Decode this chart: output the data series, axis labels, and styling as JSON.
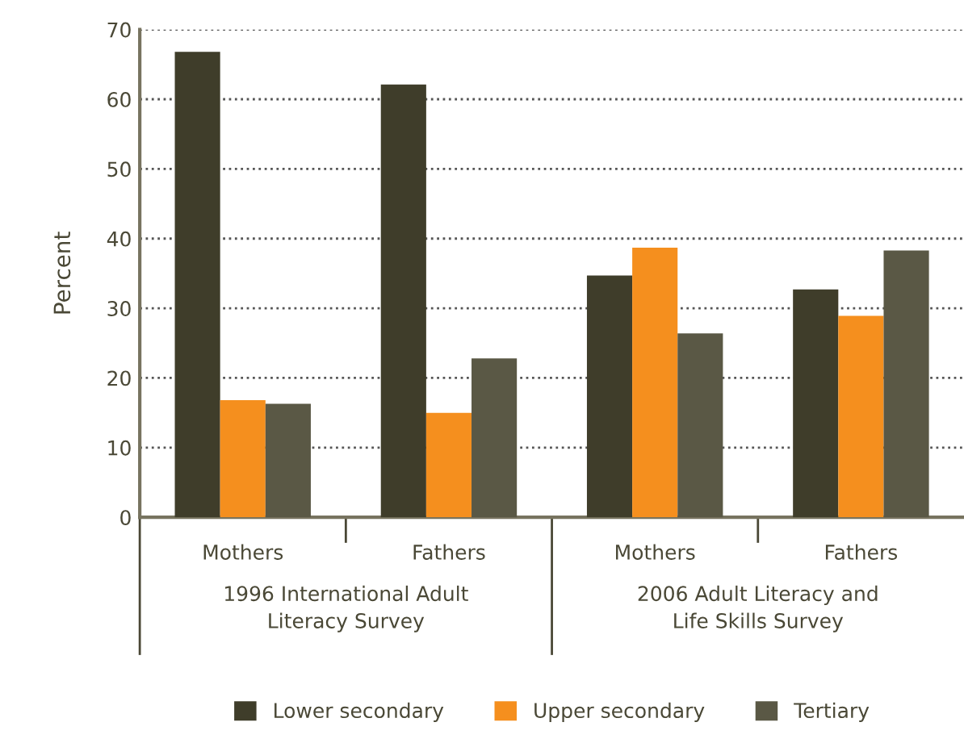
{
  "chart_data": {
    "type": "bar",
    "categories": [
      "Mothers",
      "Fathers",
      "Mothers",
      "Fathers"
    ],
    "annotations": [
      "1996 International Adult\nLiteracy Survey",
      "2006 Adult Literacy and\nLife Skills Survey"
    ],
    "ylabel": "Percent",
    "series": [
      {
        "name": "Lower secondary",
        "color": "#3f3d2a",
        "values": [
          66.8,
          62.1,
          34.7,
          32.7
        ]
      },
      {
        "name": "Upper secondary",
        "color": "#f58f1e",
        "values": [
          16.8,
          15.0,
          38.7,
          28.9
        ]
      },
      {
        "name": "Tertiary",
        "color": "#5a5845",
        "values": [
          16.3,
          22.8,
          26.4,
          38.3
        ]
      }
    ],
    "ylim": [
      0,
      70
    ],
    "yticks": [
      0,
      10,
      20,
      30,
      40,
      50,
      60,
      70
    ],
    "grid": "y",
    "legend": "bottom"
  }
}
